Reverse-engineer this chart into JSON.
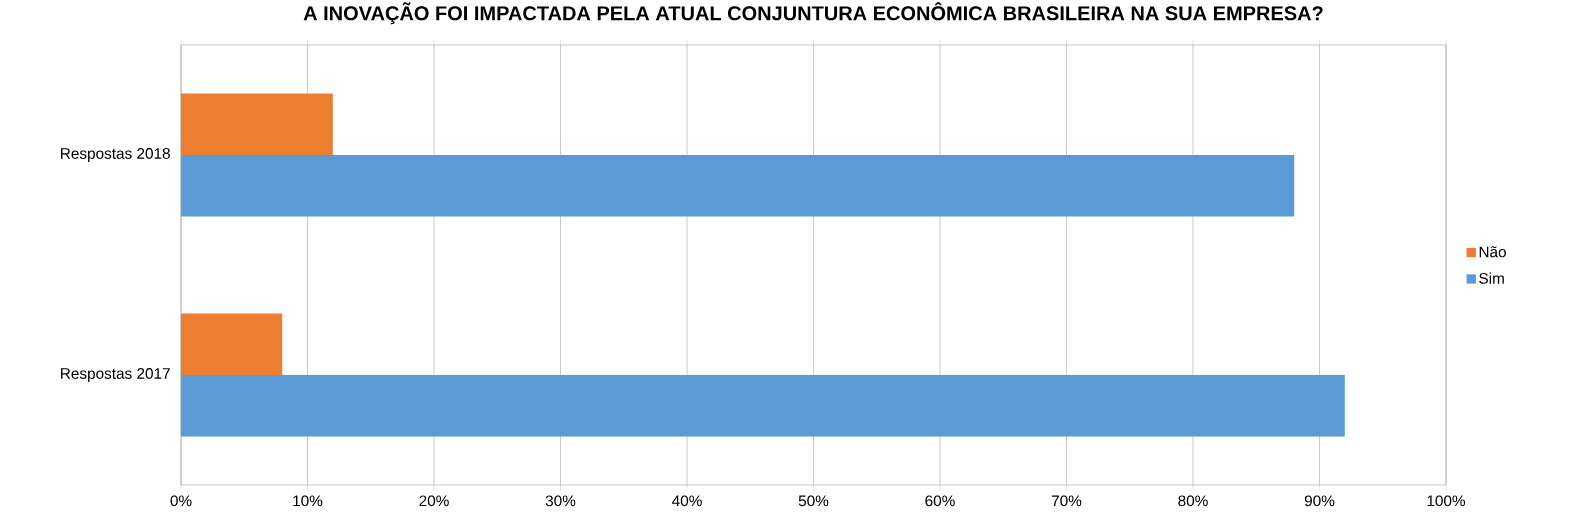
{
  "chart_data": {
    "type": "bar",
    "orientation": "horizontal",
    "title": "A INOVAÇÃO FOI IMPACTADA PELA ATUAL CONJUNTURA ECONÔMICA BRASILEIRA NA SUA EMPRESA?",
    "categories": [
      "Respostas 2018",
      "Respostas 2017"
    ],
    "series": [
      {
        "name": "Não",
        "color": "#ed7d31",
        "values": [
          12,
          8
        ]
      },
      {
        "name": "Sim",
        "color": "#5b9bd5",
        "values": [
          88,
          92
        ]
      }
    ],
    "xlim": [
      0,
      100
    ],
    "xticks": [
      {
        "value": 0,
        "label": "0%"
      },
      {
        "value": 10,
        "label": "10%"
      },
      {
        "value": 20,
        "label": "20%"
      },
      {
        "value": 30,
        "label": "30%"
      },
      {
        "value": 40,
        "label": "40%"
      },
      {
        "value": 50,
        "label": "50%"
      },
      {
        "value": 60,
        "label": "60%"
      },
      {
        "value": 70,
        "label": "70%"
      },
      {
        "value": 80,
        "label": "80%"
      },
      {
        "value": 90,
        "label": "90%"
      },
      {
        "value": 100,
        "label": "100%"
      }
    ],
    "grid": "x",
    "legend": "right"
  }
}
